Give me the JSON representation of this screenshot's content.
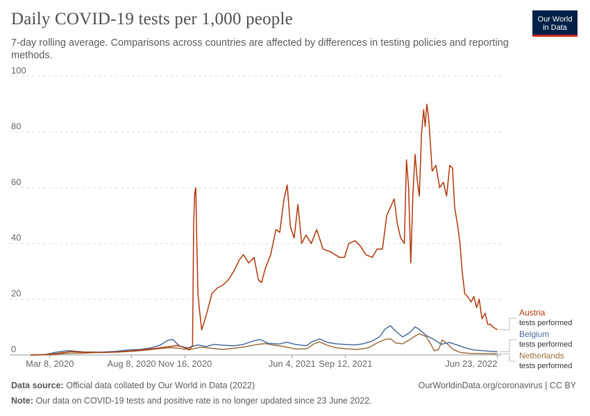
{
  "header": {
    "title": "Daily COVID-19 tests per 1,000 people",
    "subtitle": "7-day rolling average. Comparisons across countries are affected by differences in testing policies and reporting methods.",
    "logo_line1": "Our World",
    "logo_line2": "in Data"
  },
  "footer": {
    "source_label": "Data source:",
    "source_text": "Official data collated by Our World in Data (2022)",
    "note_label": "Note:",
    "note_text": "Our data on COVID-19 tests and positive rate is no longer updated since 23 June 2022.",
    "credit": "OurWorldinData.org/coronavirus | CC BY"
  },
  "chart_data": {
    "type": "line",
    "title": "Daily COVID-19 tests per 1,000 people",
    "ylabel": "",
    "xlabel": "",
    "ylim": [
      0,
      100
    ],
    "yticks": [
      0,
      20,
      40,
      60,
      80,
      100
    ],
    "xlim": [
      "2020-02-01",
      "2022-06-30"
    ],
    "xticks": [
      {
        "date": "2020-03-08",
        "label": "Mar 8, 2020"
      },
      {
        "date": "2020-08-08",
        "label": "Aug 8, 2020"
      },
      {
        "date": "2020-11-16",
        "label": "Nov 16, 2020"
      },
      {
        "date": "2021-06-04",
        "label": "Jun 4, 2021"
      },
      {
        "date": "2021-09-12",
        "label": "Sep 12, 2021"
      },
      {
        "date": "2022-06-23",
        "label": "Jun 23, 2022"
      }
    ],
    "grid": "horizontal dashed",
    "series": [
      {
        "name": "Austria",
        "label": "tests performed",
        "color": "#b13507",
        "points": [
          [
            "2020-02-01",
            0.0
          ],
          [
            "2020-03-01",
            0.1
          ],
          [
            "2020-03-20",
            0.5
          ],
          [
            "2020-04-15",
            1.2
          ],
          [
            "2020-05-15",
            1.0
          ],
          [
            "2020-06-15",
            0.9
          ],
          [
            "2020-07-15",
            1.1
          ],
          [
            "2020-08-15",
            1.6
          ],
          [
            "2020-09-15",
            2.2
          ],
          [
            "2020-10-15",
            2.9
          ],
          [
            "2020-11-01",
            3.4
          ],
          [
            "2020-11-10",
            3.0
          ],
          [
            "2020-11-18",
            2.4
          ],
          [
            "2020-11-24",
            1.8
          ],
          [
            "2020-11-30",
            3.5
          ],
          [
            "2020-12-02",
            47
          ],
          [
            "2020-12-04",
            58
          ],
          [
            "2020-12-06",
            60
          ],
          [
            "2020-12-08",
            40
          ],
          [
            "2020-12-10",
            22
          ],
          [
            "2020-12-13",
            16
          ],
          [
            "2020-12-17",
            9
          ],
          [
            "2020-12-22",
            12
          ],
          [
            "2020-12-28",
            16
          ],
          [
            "2021-01-05",
            22
          ],
          [
            "2021-01-15",
            24
          ],
          [
            "2021-01-25",
            25
          ],
          [
            "2021-02-05",
            27
          ],
          [
            "2021-02-15",
            30
          ],
          [
            "2021-02-25",
            34
          ],
          [
            "2021-03-05",
            36
          ],
          [
            "2021-03-15",
            33
          ],
          [
            "2021-03-25",
            35
          ],
          [
            "2021-04-02",
            27
          ],
          [
            "2021-04-08",
            26
          ],
          [
            "2021-04-15",
            31
          ],
          [
            "2021-04-25",
            36
          ],
          [
            "2021-05-05",
            45
          ],
          [
            "2021-05-12",
            44
          ],
          [
            "2021-05-20",
            56
          ],
          [
            "2021-05-26",
            61
          ],
          [
            "2021-06-01",
            46
          ],
          [
            "2021-06-08",
            42
          ],
          [
            "2021-06-15",
            54
          ],
          [
            "2021-06-22",
            40
          ],
          [
            "2021-06-30",
            43
          ],
          [
            "2021-07-10",
            40
          ],
          [
            "2021-07-20",
            45
          ],
          [
            "2021-08-01",
            38
          ],
          [
            "2021-08-15",
            37
          ],
          [
            "2021-09-01",
            35
          ],
          [
            "2021-09-10",
            35
          ],
          [
            "2021-09-18",
            40
          ],
          [
            "2021-09-30",
            41
          ],
          [
            "2021-10-10",
            39
          ],
          [
            "2021-10-20",
            36
          ],
          [
            "2021-11-01",
            35
          ],
          [
            "2021-11-10",
            38
          ],
          [
            "2021-11-20",
            38
          ],
          [
            "2021-11-28",
            50
          ],
          [
            "2021-12-05",
            53
          ],
          [
            "2021-12-12",
            56
          ],
          [
            "2021-12-18",
            47
          ],
          [
            "2021-12-24",
            42
          ],
          [
            "2021-12-31",
            40
          ],
          [
            "2022-01-04",
            70
          ],
          [
            "2022-01-08",
            60
          ],
          [
            "2022-01-12",
            33
          ],
          [
            "2022-01-16",
            58
          ],
          [
            "2022-01-20",
            72
          ],
          [
            "2022-01-24",
            63
          ],
          [
            "2022-01-28",
            57
          ],
          [
            "2022-02-01",
            79
          ],
          [
            "2022-02-05",
            88
          ],
          [
            "2022-02-08",
            82
          ],
          [
            "2022-02-11",
            90
          ],
          [
            "2022-02-14",
            86
          ],
          [
            "2022-02-17",
            78
          ],
          [
            "2022-02-21",
            66
          ],
          [
            "2022-02-28",
            68
          ],
          [
            "2022-03-07",
            60
          ],
          [
            "2022-03-14",
            62
          ],
          [
            "2022-03-20",
            57
          ],
          [
            "2022-03-26",
            68
          ],
          [
            "2022-03-31",
            67
          ],
          [
            "2022-04-04",
            53
          ],
          [
            "2022-04-10",
            46
          ],
          [
            "2022-04-14",
            40
          ],
          [
            "2022-04-18",
            30
          ],
          [
            "2022-04-23",
            22
          ],
          [
            "2022-04-28",
            21
          ],
          [
            "2022-05-05",
            19
          ],
          [
            "2022-05-10",
            21
          ],
          [
            "2022-05-15",
            17
          ],
          [
            "2022-05-20",
            20
          ],
          [
            "2022-05-25",
            13
          ],
          [
            "2022-05-31",
            15
          ],
          [
            "2022-06-05",
            11
          ],
          [
            "2022-06-10",
            11
          ],
          [
            "2022-06-15",
            10
          ],
          [
            "2022-06-23",
            9
          ]
        ]
      },
      {
        "name": "Belgium",
        "label": "tests performed",
        "color": "#4c6a9c",
        "points": [
          [
            "2020-02-01",
            0.0
          ],
          [
            "2020-03-01",
            0.2
          ],
          [
            "2020-03-20",
            1.0
          ],
          [
            "2020-04-10",
            1.6
          ],
          [
            "2020-05-10",
            1.1
          ],
          [
            "2020-06-10",
            1.0
          ],
          [
            "2020-07-10",
            1.3
          ],
          [
            "2020-08-01",
            1.8
          ],
          [
            "2020-08-25",
            2.0
          ],
          [
            "2020-09-15",
            2.6
          ],
          [
            "2020-10-01",
            3.6
          ],
          [
            "2020-10-15",
            5.3
          ],
          [
            "2020-10-24",
            5.6
          ],
          [
            "2020-11-05",
            3.3
          ],
          [
            "2020-11-20",
            2.5
          ],
          [
            "2020-12-10",
            3.6
          ],
          [
            "2020-12-25",
            3.0
          ],
          [
            "2021-01-10",
            3.8
          ],
          [
            "2021-01-25",
            3.5
          ],
          [
            "2021-02-15",
            3.3
          ],
          [
            "2021-03-05",
            3.8
          ],
          [
            "2021-03-20",
            4.8
          ],
          [
            "2021-04-05",
            5.6
          ],
          [
            "2021-04-20",
            4.2
          ],
          [
            "2021-05-10",
            3.9
          ],
          [
            "2021-05-25",
            4.6
          ],
          [
            "2021-06-10",
            3.8
          ],
          [
            "2021-07-01",
            3.3
          ],
          [
            "2021-07-10",
            4.6
          ],
          [
            "2021-07-25",
            5.8
          ],
          [
            "2021-08-10",
            4.5
          ],
          [
            "2021-08-25",
            4.0
          ],
          [
            "2021-09-10",
            3.8
          ],
          [
            "2021-09-30",
            3.6
          ],
          [
            "2021-10-15",
            4.0
          ],
          [
            "2021-11-01",
            5.0
          ],
          [
            "2021-11-15",
            6.6
          ],
          [
            "2021-11-25",
            9.3
          ],
          [
            "2021-12-05",
            10.5
          ],
          [
            "2021-12-15",
            8.5
          ],
          [
            "2021-12-28",
            6.5
          ],
          [
            "2022-01-10",
            8.0
          ],
          [
            "2022-01-20",
            10.1
          ],
          [
            "2022-01-27",
            9.3
          ],
          [
            "2022-02-10",
            7.0
          ],
          [
            "2022-02-25",
            5.5
          ],
          [
            "2022-03-10",
            3.8
          ],
          [
            "2022-03-25",
            4.5
          ],
          [
            "2022-04-10",
            3.5
          ],
          [
            "2022-04-25",
            2.5
          ],
          [
            "2022-05-10",
            1.8
          ],
          [
            "2022-05-25",
            1.6
          ],
          [
            "2022-06-10",
            1.3
          ],
          [
            "2022-06-23",
            1.2
          ]
        ]
      },
      {
        "name": "Netherlands",
        "label": "tests performed",
        "color": "#996d39",
        "points": [
          [
            "2020-02-01",
            0.0
          ],
          [
            "2020-03-01",
            0.1
          ],
          [
            "2020-03-20",
            0.3
          ],
          [
            "2020-04-15",
            0.6
          ],
          [
            "2020-05-15",
            0.7
          ],
          [
            "2020-06-15",
            1.0
          ],
          [
            "2020-07-15",
            1.1
          ],
          [
            "2020-08-15",
            1.4
          ],
          [
            "2020-09-15",
            2.0
          ],
          [
            "2020-10-15",
            2.6
          ],
          [
            "2020-11-01",
            2.5
          ],
          [
            "2020-11-15",
            2.1
          ],
          [
            "2020-12-01",
            2.2
          ],
          [
            "2020-12-15",
            2.8
          ],
          [
            "2021-01-05",
            2.4
          ],
          [
            "2021-01-25",
            2.0
          ],
          [
            "2021-02-15",
            2.4
          ],
          [
            "2021-03-10",
            3.0
          ],
          [
            "2021-04-01",
            3.8
          ],
          [
            "2021-04-15",
            4.1
          ],
          [
            "2021-05-01",
            3.5
          ],
          [
            "2021-05-20",
            3.0
          ],
          [
            "2021-06-10",
            2.2
          ],
          [
            "2021-07-01",
            2.2
          ],
          [
            "2021-07-15",
            4.0
          ],
          [
            "2021-07-25",
            4.7
          ],
          [
            "2021-08-10",
            3.4
          ],
          [
            "2021-08-25",
            2.6
          ],
          [
            "2021-09-15",
            2.2
          ],
          [
            "2021-10-05",
            2.0
          ],
          [
            "2021-10-25",
            2.6
          ],
          [
            "2021-11-10",
            4.3
          ],
          [
            "2021-11-25",
            5.6
          ],
          [
            "2021-12-05",
            5.8
          ],
          [
            "2021-12-15",
            4.3
          ],
          [
            "2021-12-28",
            4.0
          ],
          [
            "2022-01-10",
            5.5
          ],
          [
            "2022-01-20",
            6.8
          ],
          [
            "2022-01-28",
            7.6
          ],
          [
            "2022-02-10",
            6.6
          ],
          [
            "2022-02-18",
            4.0
          ],
          [
            "2022-02-25",
            1.5
          ],
          [
            "2022-03-05",
            2.0
          ],
          [
            "2022-03-12",
            5.4
          ],
          [
            "2022-03-20",
            4.2
          ],
          [
            "2022-04-01",
            2.0
          ],
          [
            "2022-04-15",
            0.9
          ],
          [
            "2022-05-01",
            0.6
          ],
          [
            "2022-05-20",
            0.5
          ],
          [
            "2022-06-23",
            0.4
          ]
        ]
      }
    ]
  }
}
